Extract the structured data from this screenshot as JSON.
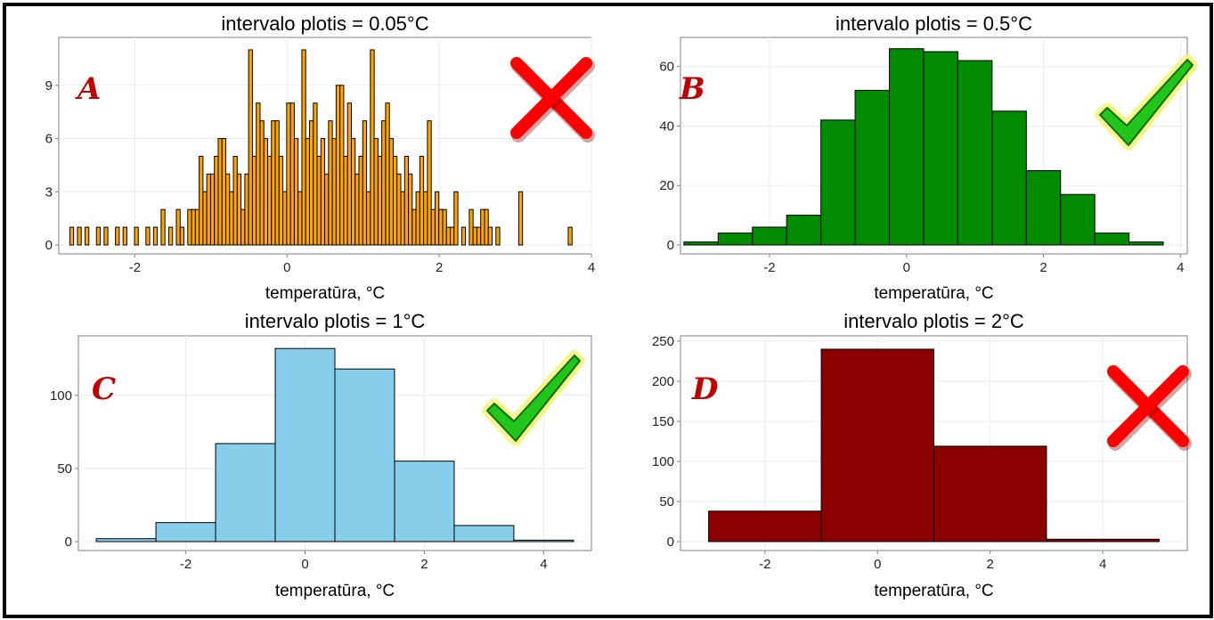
{
  "chart_data": [
    {
      "id": "A",
      "type": "bar",
      "title": "intervalo plotis = 0.05°C",
      "xlabel": "temperatūra, °C",
      "ylabel": "",
      "panel_letter": "A",
      "verdict": "cross",
      "fill": "#FFA500",
      "xlim": [
        -3.0,
        4.0
      ],
      "ylim": [
        0,
        11.4
      ],
      "xticks": [
        -2,
        0,
        2,
        4
      ],
      "yticks": [
        0,
        3,
        6,
        9
      ],
      "binwidth": 0.05,
      "bins": [
        [
          -2.83,
          1
        ],
        [
          -2.73,
          1
        ],
        [
          -2.63,
          1
        ],
        [
          -2.48,
          1
        ],
        [
          -2.38,
          1
        ],
        [
          -2.23,
          1
        ],
        [
          -2.13,
          1
        ],
        [
          -1.98,
          1
        ],
        [
          -1.83,
          1
        ],
        [
          -1.73,
          1
        ],
        [
          -1.63,
          2
        ],
        [
          -1.53,
          1
        ],
        [
          -1.43,
          2
        ],
        [
          -1.38,
          1
        ],
        [
          -1.28,
          2
        ],
        [
          -1.23,
          2
        ],
        [
          -1.18,
          2
        ],
        [
          -1.13,
          5
        ],
        [
          -1.08,
          3
        ],
        [
          -1.03,
          4
        ],
        [
          -0.98,
          4
        ],
        [
          -0.93,
          5
        ],
        [
          -0.88,
          6
        ],
        [
          -0.83,
          6
        ],
        [
          -0.78,
          4
        ],
        [
          -0.73,
          3
        ],
        [
          -0.68,
          5
        ],
        [
          -0.63,
          4
        ],
        [
          -0.58,
          2
        ],
        [
          -0.53,
          4
        ],
        [
          -0.48,
          11
        ],
        [
          -0.43,
          5
        ],
        [
          -0.38,
          8
        ],
        [
          -0.33,
          7
        ],
        [
          -0.28,
          6
        ],
        [
          -0.23,
          5
        ],
        [
          -0.18,
          7
        ],
        [
          -0.13,
          7
        ],
        [
          -0.08,
          5
        ],
        [
          -0.03,
          3
        ],
        [
          0.02,
          8
        ],
        [
          0.07,
          8
        ],
        [
          0.12,
          6
        ],
        [
          0.17,
          3
        ],
        [
          0.22,
          11
        ],
        [
          0.27,
          6
        ],
        [
          0.32,
          7
        ],
        [
          0.37,
          8
        ],
        [
          0.42,
          5
        ],
        [
          0.47,
          6
        ],
        [
          0.52,
          4
        ],
        [
          0.57,
          7
        ],
        [
          0.62,
          6
        ],
        [
          0.67,
          9
        ],
        [
          0.72,
          9
        ],
        [
          0.77,
          5
        ],
        [
          0.82,
          8
        ],
        [
          0.87,
          6
        ],
        [
          0.92,
          4
        ],
        [
          0.97,
          5
        ],
        [
          1.02,
          7
        ],
        [
          1.07,
          3
        ],
        [
          1.12,
          11
        ],
        [
          1.17,
          6
        ],
        [
          1.22,
          5
        ],
        [
          1.27,
          7
        ],
        [
          1.32,
          8
        ],
        [
          1.37,
          6
        ],
        [
          1.42,
          5
        ],
        [
          1.47,
          4
        ],
        [
          1.52,
          3
        ],
        [
          1.57,
          5
        ],
        [
          1.62,
          4
        ],
        [
          1.67,
          2
        ],
        [
          1.72,
          3
        ],
        [
          1.77,
          5
        ],
        [
          1.82,
          3
        ],
        [
          1.87,
          7
        ],
        [
          1.92,
          2
        ],
        [
          1.97,
          3
        ],
        [
          2.02,
          2
        ],
        [
          2.07,
          2
        ],
        [
          2.12,
          1
        ],
        [
          2.17,
          1
        ],
        [
          2.22,
          3
        ],
        [
          2.32,
          1
        ],
        [
          2.42,
          2
        ],
        [
          2.47,
          1
        ],
        [
          2.52,
          1
        ],
        [
          2.57,
          2
        ],
        [
          2.62,
          2
        ],
        [
          2.67,
          1
        ],
        [
          2.77,
          1
        ],
        [
          3.07,
          3
        ],
        [
          3.72,
          1
        ]
      ]
    },
    {
      "id": "B",
      "type": "bar",
      "title": "intervalo plotis = 0.5°C",
      "xlabel": "temperatūra, °C",
      "ylabel": "",
      "panel_letter": "B",
      "verdict": "check",
      "fill": "#008B00",
      "xlim": [
        -3.3,
        4.1
      ],
      "ylim": [
        0,
        68
      ],
      "xticks": [
        -2,
        0,
        2,
        4
      ],
      "yticks": [
        0,
        20,
        40,
        60
      ],
      "binwidth": 0.5,
      "bins": [
        [
          -3.0,
          1
        ],
        [
          -2.5,
          4
        ],
        [
          -2.0,
          6
        ],
        [
          -1.5,
          10
        ],
        [
          -1.0,
          42
        ],
        [
          -0.5,
          52
        ],
        [
          0.0,
          66
        ],
        [
          0.5,
          65
        ],
        [
          1.0,
          62
        ],
        [
          1.5,
          45
        ],
        [
          2.0,
          25
        ],
        [
          2.5,
          17
        ],
        [
          3.0,
          4
        ],
        [
          3.5,
          1
        ]
      ]
    },
    {
      "id": "C",
      "type": "bar",
      "title": "intervalo plotis = 1°C",
      "xlabel": "temperatūra, °C",
      "ylabel": "",
      "panel_letter": "C",
      "verdict": "check",
      "fill": "#87CEEB",
      "xlim": [
        -3.8,
        4.8
      ],
      "ylim": [
        0,
        137
      ],
      "xticks": [
        -2,
        0,
        2,
        4
      ],
      "yticks": [
        0,
        50,
        100
      ],
      "binwidth": 1,
      "bins": [
        [
          -3,
          2
        ],
        [
          -2,
          13
        ],
        [
          -1,
          67
        ],
        [
          0,
          132
        ],
        [
          1,
          118
        ],
        [
          2,
          55
        ],
        [
          3,
          11
        ],
        [
          4,
          1
        ]
      ]
    },
    {
      "id": "D",
      "type": "bar",
      "title": "intervalo plotis = 2°C",
      "xlabel": "temperatūra, °C",
      "ylabel": "",
      "panel_letter": "D",
      "verdict": "cross",
      "fill": "#8B0000",
      "xlim": [
        -3.5,
        5.5
      ],
      "ylim": [
        0,
        250
      ],
      "xticks": [
        -2,
        0,
        2,
        4
      ],
      "yticks": [
        0,
        50,
        100,
        150,
        200,
        250
      ],
      "binwidth": 2,
      "bins": [
        [
          -2,
          38
        ],
        [
          0,
          240
        ],
        [
          2,
          119
        ],
        [
          4,
          3
        ]
      ]
    }
  ],
  "colors": {
    "panel_letter": "#C00000",
    "cross": "#FF0000",
    "check": "#22C51A",
    "check_glow": "#F5F57A",
    "grid": "#EBEBEB",
    "axis": "#7F7F7F",
    "bar_stroke": "#000000"
  }
}
